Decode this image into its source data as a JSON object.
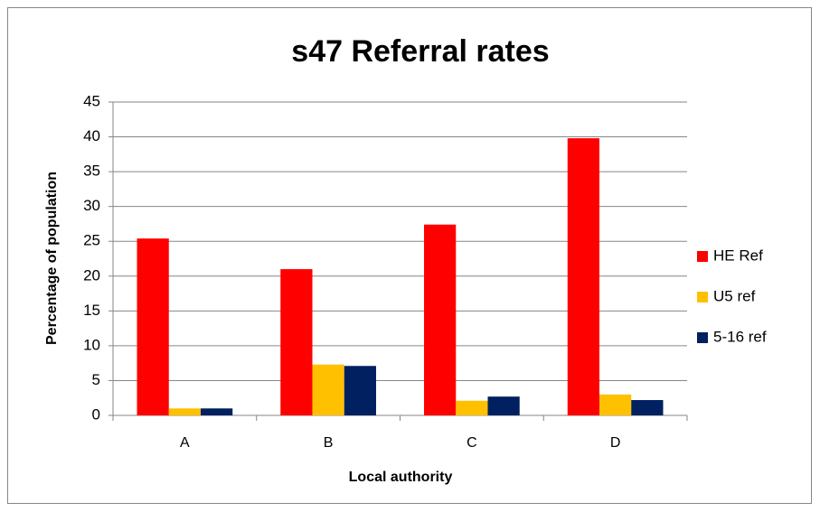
{
  "chart_data": {
    "type": "bar",
    "title": "s47 Referral rates",
    "x_label": "Local authority",
    "y_label": "Percentage of population",
    "categories": [
      "A",
      "B",
      "C",
      "D"
    ],
    "series": [
      {
        "name": "HE Ref",
        "color": "#ff0000",
        "values": [
          25.4,
          21.0,
          27.4,
          39.8
        ]
      },
      {
        "name": "U5 ref",
        "color": "#ffc000",
        "values": [
          1.0,
          7.3,
          2.1,
          3.0
        ]
      },
      {
        "name": "5-16 ref",
        "color": "#002060",
        "values": [
          1.0,
          7.1,
          2.7,
          2.2
        ]
      }
    ],
    "ylim": [
      0,
      45
    ],
    "yticks": [
      0,
      5,
      10,
      15,
      20,
      25,
      30,
      35,
      40,
      45
    ],
    "grid": true,
    "legend": "right"
  }
}
